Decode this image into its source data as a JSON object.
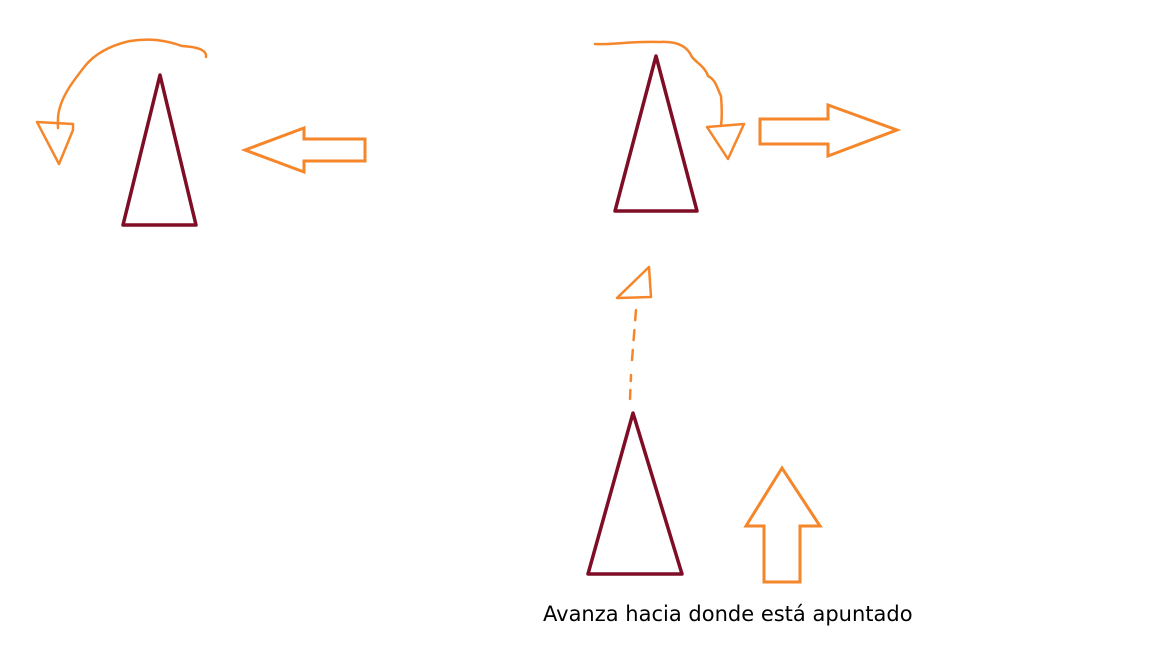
{
  "caption": "Avanza hacia donde está apuntado",
  "colors": {
    "triangle": "#7f0d26",
    "arrow": "#f5862a",
    "background": "#ffffff",
    "text": "#000000"
  },
  "items": [
    {
      "triangle": "triangle",
      "action": "turn-left-icon",
      "direction": "left-arrow-icon"
    },
    {
      "triangle": "triangle",
      "action": "turn-right-icon",
      "direction": "right-arrow-icon"
    },
    {
      "triangle": "triangle",
      "action": "forward-dashed-icon",
      "direction": "up-arrow-icon"
    }
  ]
}
